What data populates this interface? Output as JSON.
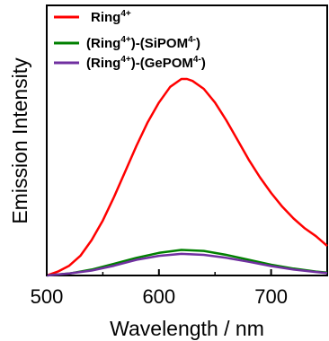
{
  "chart_data": {
    "type": "line",
    "xlabel": "Wavelength / nm",
    "ylabel": "Emission Intensity",
    "xlim": [
      500,
      750
    ],
    "ylim": [
      0,
      1
    ],
    "x_ticks": [
      "500",
      "600",
      "700"
    ],
    "y_ticks_shown": false,
    "grid": false,
    "legend_position": "top-left",
    "series": [
      {
        "name": "Ring",
        "name_sup": "4+",
        "color": "#ff0000",
        "x": [
          500,
          510,
          520,
          530,
          540,
          550,
          560,
          570,
          580,
          590,
          600,
          610,
          620,
          625,
          630,
          640,
          650,
          660,
          670,
          680,
          690,
          700,
          710,
          720,
          730,
          740,
          750
        ],
        "y": [
          0.0,
          0.02,
          0.05,
          0.1,
          0.18,
          0.28,
          0.4,
          0.53,
          0.66,
          0.78,
          0.88,
          0.96,
          1.0,
          1.0,
          0.99,
          0.95,
          0.88,
          0.79,
          0.69,
          0.59,
          0.5,
          0.42,
          0.35,
          0.29,
          0.24,
          0.2,
          0.15
        ]
      },
      {
        "name": "(Ring",
        "name_sup": "4+",
        "name_mid": ")-(SiPOM",
        "name_sup2": "4-",
        "name_end": ")",
        "color": "#008000",
        "x": [
          500,
          520,
          540,
          560,
          580,
          600,
          620,
          640,
          660,
          680,
          700,
          720,
          740,
          750
        ],
        "y": [
          0.0,
          0.01,
          0.03,
          0.06,
          0.09,
          0.115,
          0.13,
          0.125,
          0.105,
          0.08,
          0.055,
          0.035,
          0.02,
          0.015
        ]
      },
      {
        "name": "(Ring",
        "name_sup": "4+",
        "name_mid": ")-(GePOM",
        "name_sup2": "4-",
        "name_end": ")",
        "color": "#7030a0",
        "x": [
          500,
          520,
          540,
          560,
          580,
          600,
          620,
          640,
          660,
          680,
          700,
          720,
          740,
          750
        ],
        "y": [
          0.0,
          0.01,
          0.025,
          0.05,
          0.08,
          0.1,
          0.11,
          0.105,
          0.09,
          0.07,
          0.048,
          0.03,
          0.018,
          0.012
        ]
      }
    ]
  }
}
